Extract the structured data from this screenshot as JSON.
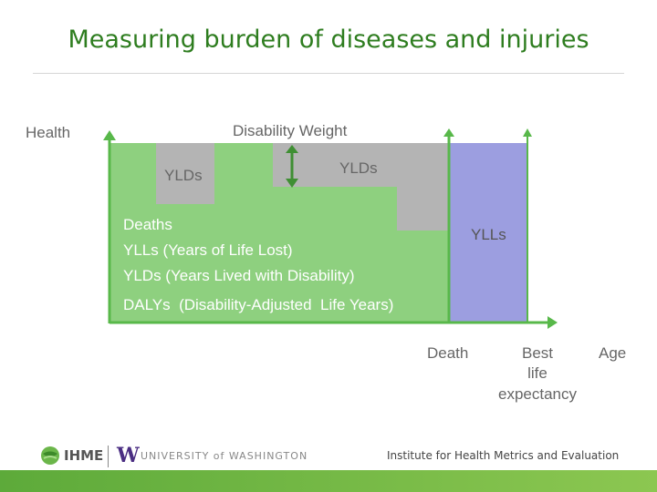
{
  "title": "Measuring burden of diseases and injuries",
  "diagram": {
    "y_axis_label": "Health",
    "disability_weight_label": "Disability Weight",
    "yld_label_1": "YLDs",
    "yld_label_2": "YLDs",
    "yll_label": "YLLs",
    "legend_lines": [
      "Deaths",
      "YLLs (Years of Life Lost)",
      "YLDs (Years Lived with Disability)",
      "DALYs  (Disability-Adjusted  Life Years)"
    ],
    "x_labels": {
      "death": "Death",
      "best_life_1": "Best",
      "best_life_2": "life",
      "best_life_3": "expectancy",
      "age": "Age"
    },
    "colors": {
      "green": "#8ed07f",
      "green_axis": "#58b84a",
      "grey": "#b4b4b4",
      "purple": "#9c9ee0",
      "text": "#666666"
    }
  },
  "footer": {
    "ihme": "IHME",
    "uw_mark": "W",
    "uw_text": "UNIVERSITY of WASHINGTON",
    "institute": "Institute for Health Metrics and Evaluation"
  }
}
